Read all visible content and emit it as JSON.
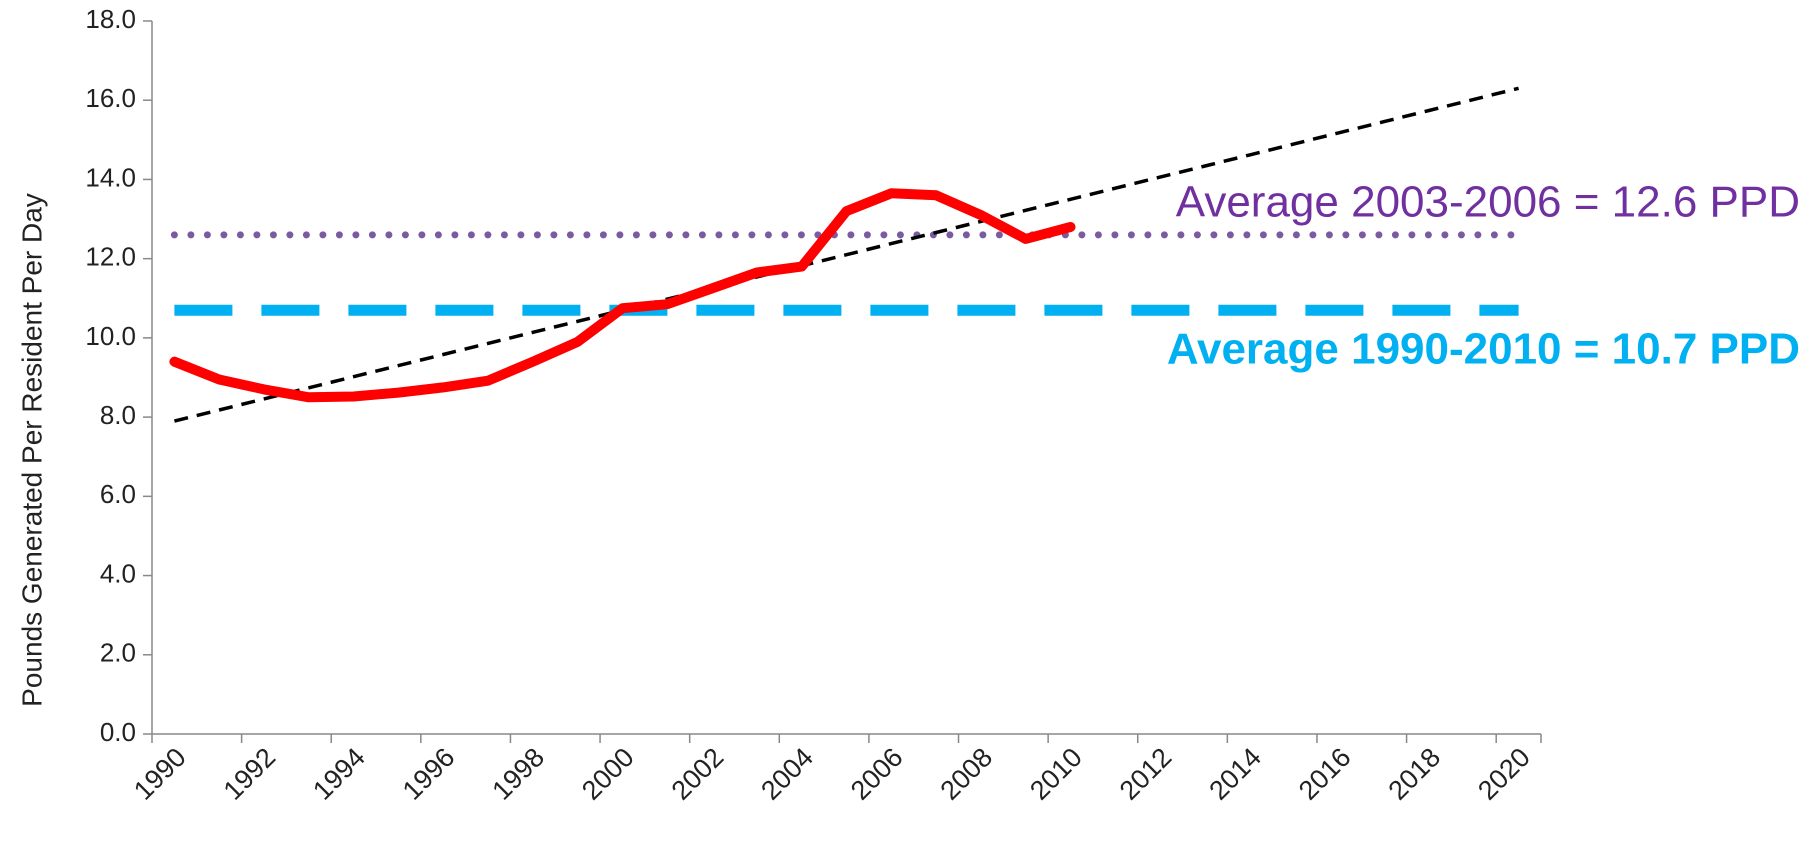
{
  "chart_data": {
    "type": "line",
    "y_label": "Pounds Generated Per Resident Per Day",
    "categories": [
      "1990",
      null,
      "1992",
      null,
      "1994",
      null,
      "1996",
      null,
      "1998",
      null,
      "2000",
      null,
      "2002",
      null,
      "2004",
      null,
      "2006",
      null,
      "2008",
      null,
      "2010",
      null,
      "2012",
      null,
      "2014",
      null,
      "2016",
      null,
      "2018",
      null,
      "2020"
    ],
    "series": [
      {
        "color": "#ff0000",
        "style": "solid",
        "values": [
          9.4,
          8.95,
          8.7,
          8.5,
          8.52,
          8.62,
          8.75,
          8.92,
          9.4,
          9.9,
          10.75,
          10.85,
          11.25,
          11.65,
          11.8,
          13.2,
          13.65,
          13.6,
          13.1,
          12.5,
          12.8,
          null,
          null,
          null,
          null,
          null,
          null,
          null,
          null,
          null,
          null
        ]
      },
      {
        "color": "#000000",
        "style": "dashed",
        "values": [
          7.9,
          8.18,
          8.46,
          8.74,
          9.02,
          9.3,
          9.58,
          9.86,
          10.14,
          10.42,
          10.7,
          10.98,
          11.26,
          11.54,
          11.82,
          12.1,
          12.38,
          12.66,
          12.94,
          13.22,
          13.5,
          13.78,
          14.06,
          14.34,
          14.62,
          14.9,
          15.18,
          15.46,
          15.74,
          16.02,
          16.3
        ]
      },
      {
        "color": "#7a5aa0",
        "style": "dotted",
        "values": [
          12.6,
          12.6,
          12.6,
          12.6,
          12.6,
          12.6,
          12.6,
          12.6,
          12.6,
          12.6,
          12.6,
          12.6,
          12.6,
          12.6,
          12.6,
          12.6,
          12.6,
          12.6,
          12.6,
          12.6,
          12.6,
          12.6,
          12.6,
          12.6,
          12.6,
          12.6,
          12.6,
          12.6,
          12.6,
          12.6,
          12.6
        ]
      },
      {
        "color": "#00b0f0",
        "style": "longdash",
        "values": [
          10.7,
          10.7,
          10.7,
          10.7,
          10.7,
          10.7,
          10.7,
          10.7,
          10.7,
          10.7,
          10.7,
          10.7,
          10.7,
          10.7,
          10.7,
          10.7,
          10.7,
          10.7,
          10.7,
          10.7,
          10.7,
          10.7,
          10.7,
          10.7,
          10.7,
          10.7,
          10.7,
          10.7,
          10.7,
          10.7,
          10.7
        ]
      }
    ],
    "annotations": [
      {
        "text": "Average 2003-2006 = 12.6 PPD",
        "color": "#7030a0",
        "bold": false
      },
      {
        "text": "Average 1990-2010 = 10.7 PPD",
        "color": "#00b0f0",
        "bold": true
      }
    ],
    "ylim": [
      0,
      18
    ],
    "yticks": [
      {
        "value": 0,
        "label": "0.0"
      },
      {
        "value": 2,
        "label": "2.0"
      },
      {
        "value": 4,
        "label": "4.0"
      },
      {
        "value": 6,
        "label": "6.0"
      },
      {
        "value": 8,
        "label": "8.0"
      },
      {
        "value": 10,
        "label": "10.0"
      },
      {
        "value": 12,
        "label": "12.0"
      },
      {
        "value": 14,
        "label": "14.0"
      },
      {
        "value": 16,
        "label": "16.0"
      },
      {
        "value": 18,
        "label": "18.0"
      }
    ],
    "grid": false
  }
}
